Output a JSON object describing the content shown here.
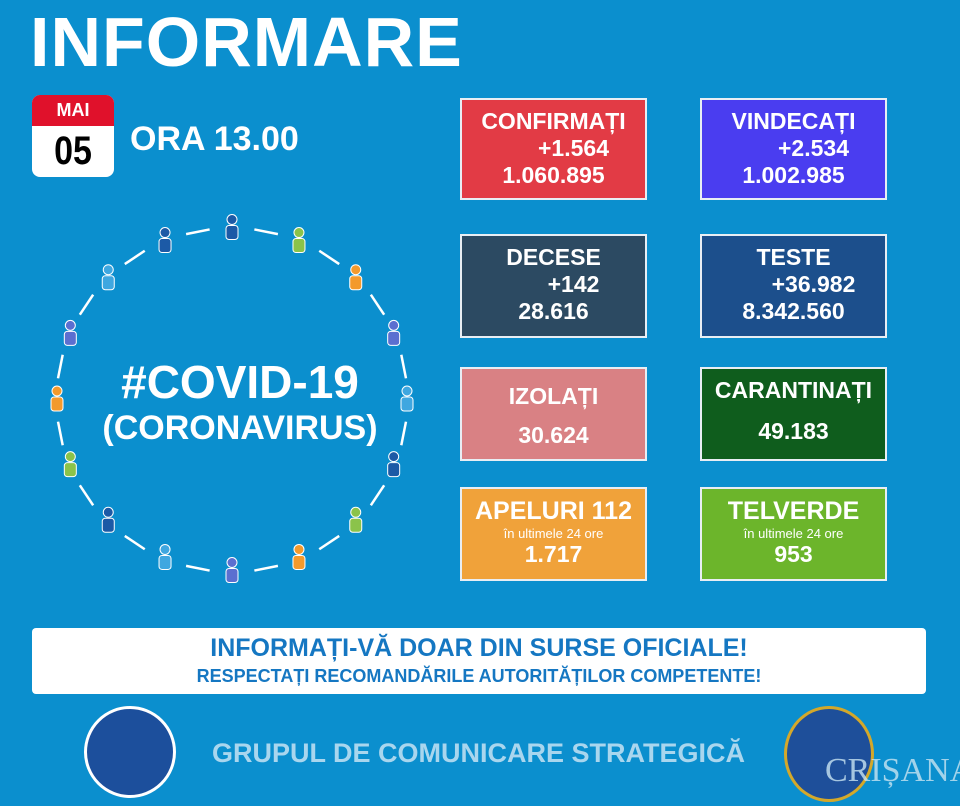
{
  "header": {
    "title": "INFORMARE",
    "month": "MAI",
    "day": "05",
    "time": "ORA 13.00"
  },
  "covid": {
    "line1": "#COVID-19",
    "line2": "(CORONAVIRUS)"
  },
  "cards": [
    {
      "label": "CONFIRMAȚI",
      "delta": "+1.564",
      "total": "1.060.895",
      "color": "#e23b45"
    },
    {
      "label": "VINDECAȚI",
      "delta": "+2.534",
      "total": "1.002.985",
      "color": "#4a3df0"
    },
    {
      "label": "DECESE",
      "delta": "+142",
      "total": "28.616",
      "color": "#2c4a62"
    },
    {
      "label": "TESTE",
      "delta": "+36.982",
      "total": "8.342.560",
      "color": "#1c4f8c"
    },
    {
      "label": "IZOLAȚI",
      "total": "30.624",
      "color": "#d98184"
    },
    {
      "label": "CARANTINAȚI",
      "total": "49.183",
      "color": "#0f5d1d"
    },
    {
      "label": "APELURI 112",
      "sub": "în ultimele 24 ore",
      "total": "1.717",
      "color": "#f0a23a"
    },
    {
      "label": "TELVERDE",
      "sub": "în ultimele 24 ore",
      "total": "953",
      "color": "#6cb52b"
    }
  ],
  "banner": {
    "line1": "INFORMAȚI-VĂ DOAR DIN SURSE OFICIALE!",
    "line2": "RESPECTAȚI RECOMANDĂRILE AUTORITĂȚILOR COMPETENTE!"
  },
  "footer": {
    "text": "GRUPUL DE COMUNICARE STRATEGICĂ",
    "logo_left": "GUVERNUL ROMÂNIEI",
    "logo_right": "DEPARTAMENTUL PENTRU SITUAȚII DE URGENȚĂ M.A.I.",
    "watermark": "CRIȘANA"
  }
}
